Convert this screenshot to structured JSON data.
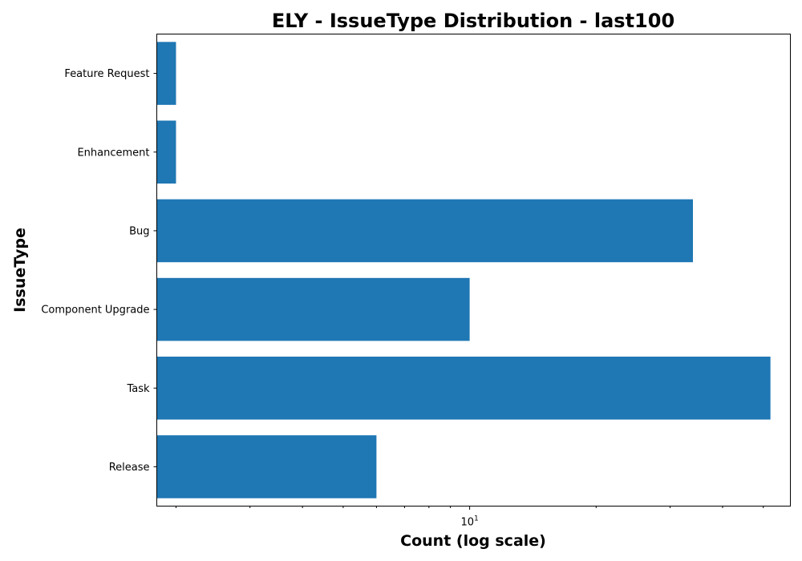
{
  "chart_data": {
    "type": "bar",
    "orientation": "horizontal",
    "title": "ELY - IssueType Distribution - last100",
    "xlabel": "Count (log scale)",
    "ylabel": "IssueType",
    "x_scale": "log",
    "xlim": [
      1.8,
      58
    ],
    "x_major_tick": {
      "value": 10,
      "label_base": "10",
      "label_exp": "1"
    },
    "x_minor_ticks": [
      2,
      3,
      4,
      5,
      6,
      7,
      8,
      9,
      20,
      30,
      40,
      50
    ],
    "grid": false,
    "legend": "none",
    "bar_color": "#1f77b4",
    "categories": [
      "Feature Request",
      "Enhancement",
      "Bug",
      "Component Upgrade",
      "Task",
      "Release"
    ],
    "values": [
      2,
      2,
      34,
      10,
      52,
      6
    ]
  }
}
